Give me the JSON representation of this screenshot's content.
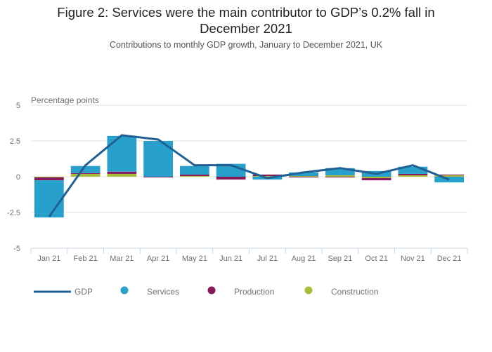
{
  "header": {
    "title_line1": "Figure 2: Services were the main contributor to GDP’s 0.2% fall in",
    "title_line2": "December 2021",
    "subtitle": "Contributions to monthly GDP growth, January to December 2021, UK"
  },
  "chart_data": {
    "type": "bar",
    "stacked": true,
    "title": "Figure 2: Services were the main contributor to GDP’s 0.2% fall in December 2021",
    "subtitle": "Contributions to monthly GDP growth, January to December 2021, UK",
    "xlabel": "",
    "ylabel": "Percentage points",
    "ylim": [
      -5,
      5
    ],
    "yticks": [
      5,
      2.5,
      0,
      -2.5,
      -5
    ],
    "ytick_labels": [
      "5",
      "2.5",
      "0",
      "-2.5",
      "-5"
    ],
    "grid": true,
    "legend_position": "bottom",
    "categories": [
      "Jan 21",
      "Feb 21",
      "Mar 21",
      "Apr 21",
      "May 21",
      "Jun 21",
      "Jul 21",
      "Aug 21",
      "Sep 21",
      "Oct 21",
      "Nov 21",
      "Dec 21"
    ],
    "series": [
      {
        "name": "Services",
        "kind": "bar",
        "color": "#27a0cc",
        "values": [
          -2.6,
          0.5,
          2.5,
          2.5,
          0.6,
          0.9,
          -0.2,
          0.25,
          0.5,
          0.4,
          0.5,
          -0.4
        ]
      },
      {
        "name": "Production",
        "kind": "bar",
        "color": "#871a5b",
        "values": [
          -0.2,
          0.05,
          0.15,
          -0.05,
          0.1,
          -0.2,
          0.1,
          -0.05,
          -0.05,
          -0.15,
          0.1,
          0.05
        ]
      },
      {
        "name": "Construction",
        "kind": "bar",
        "color": "#a8bd3a",
        "values": [
          -0.05,
          0.2,
          0.2,
          0.0,
          0.05,
          0.0,
          0.05,
          0.05,
          0.1,
          -0.1,
          0.1,
          0.1
        ]
      },
      {
        "name": "GDP",
        "kind": "line",
        "color": "#206095",
        "values": [
          -2.8,
          0.8,
          2.9,
          2.6,
          0.8,
          0.8,
          -0.1,
          0.3,
          0.6,
          0.2,
          0.8,
          -0.2
        ]
      }
    ]
  },
  "legend": {
    "items": [
      {
        "label": "GDP",
        "symbol": "line",
        "color": "#206095"
      },
      {
        "label": "Services",
        "symbol": "circle",
        "color": "#27a0cc"
      },
      {
        "label": "Production",
        "symbol": "circle",
        "color": "#871a5b"
      },
      {
        "label": "Construction",
        "symbol": "circle",
        "color": "#a8bd3a"
      }
    ]
  }
}
